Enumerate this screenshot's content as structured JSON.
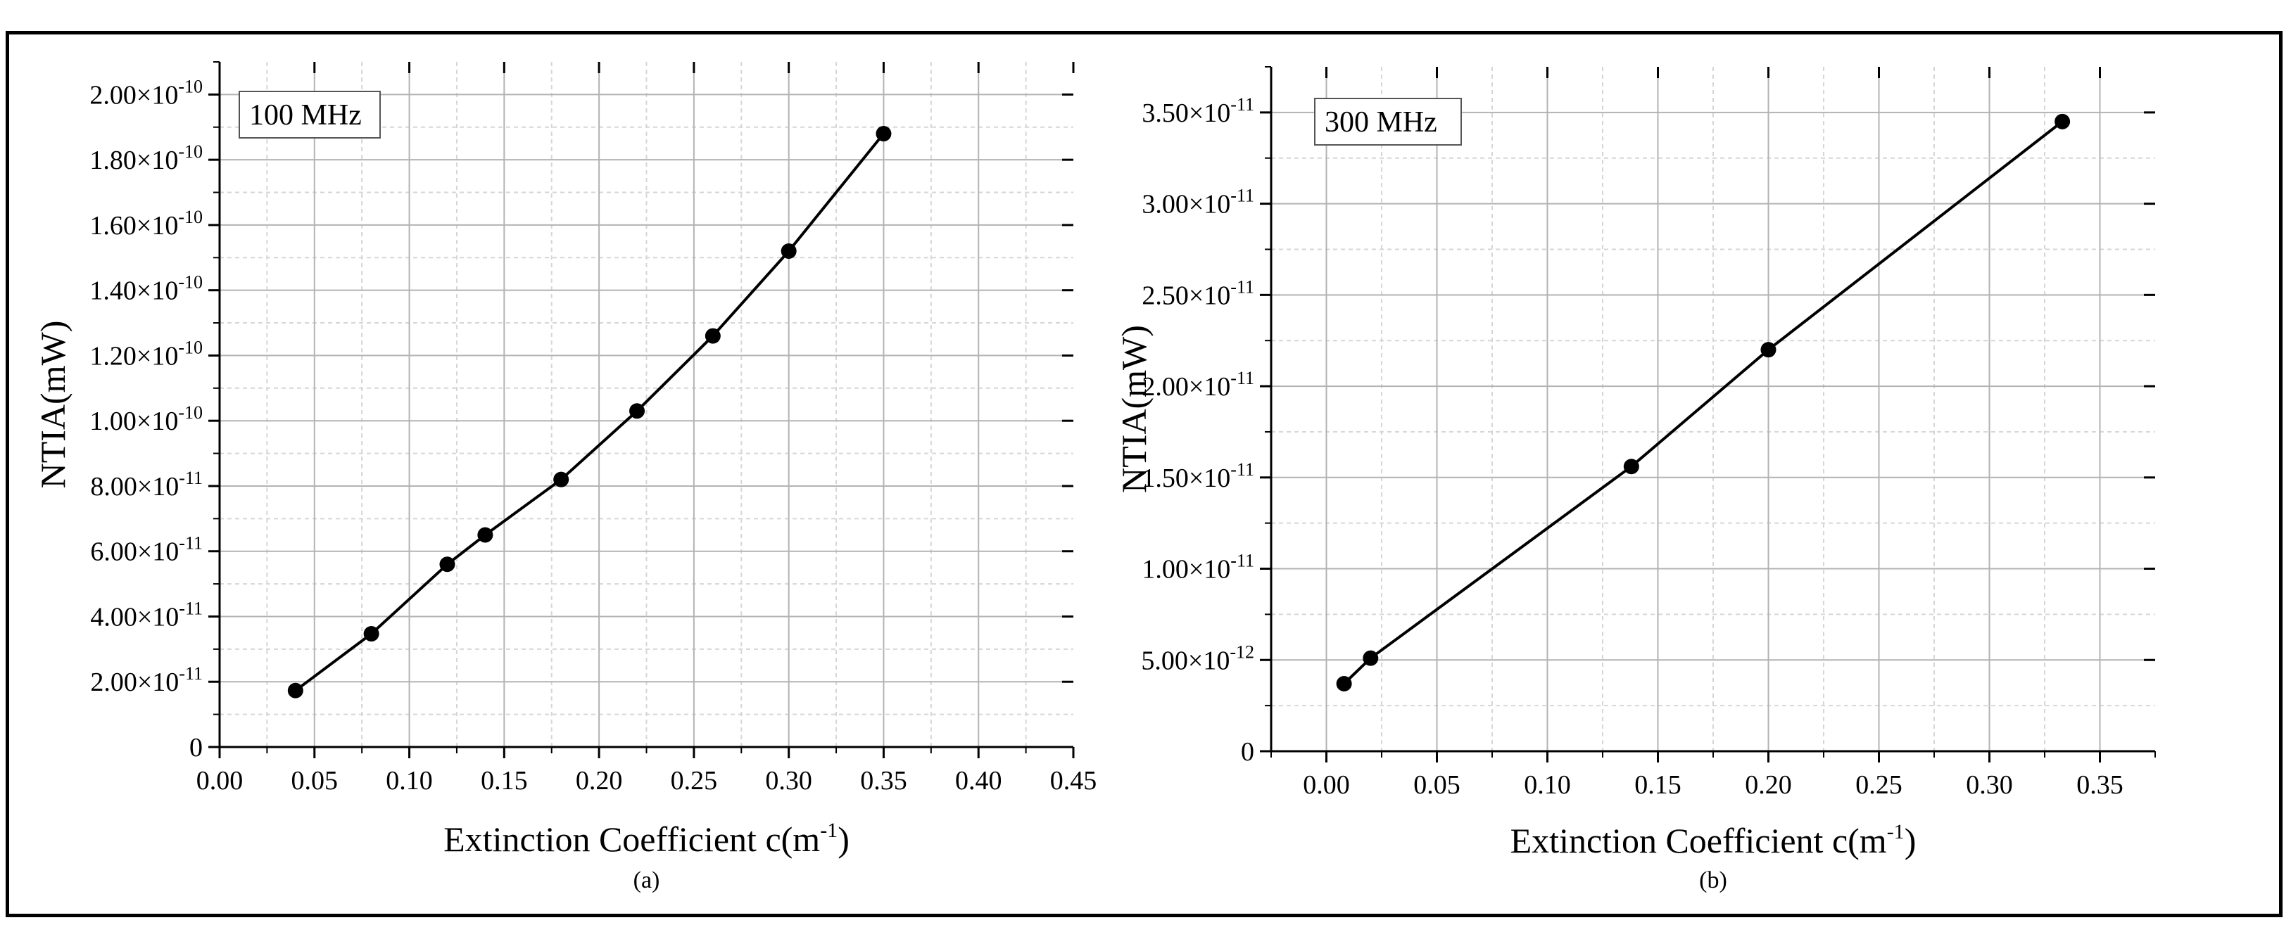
{
  "figure": {
    "panels": [
      {
        "label": "(a)",
        "legend_text": "100 MHz",
        "ylabel": "NTIA(mW)",
        "xlabel_main": "Extinction Coefficient c(m",
        "xlabel_sup": "-1",
        "xlabel_end": ")"
      },
      {
        "label": "(b)",
        "legend_text": "300 MHz",
        "ylabel": "NTIA(mW)",
        "xlabel_main": "Extinction Coefficient c(m",
        "xlabel_sup": "-1",
        "xlabel_end": ")"
      }
    ]
  },
  "chart_data": [
    {
      "type": "line",
      "title": "100 MHz",
      "xlabel": "Extinction Coefficient c(m-1)",
      "ylabel": "NTIA(mW)",
      "xlim": [
        0,
        0.45
      ],
      "ylim": [
        0,
        2.1e-10
      ],
      "x_ticks": [
        0,
        0.05,
        0.1,
        0.15,
        0.2,
        0.25,
        0.3,
        0.35,
        0.4,
        0.45
      ],
      "x_tick_labels": [
        "0.00",
        "0.05",
        "0.10",
        "0.15",
        "0.20",
        "0.25",
        "0.30",
        "0.35",
        "0.40",
        "0.45"
      ],
      "y_ticks": [
        0,
        2e-11,
        4e-11,
        6e-11,
        8e-11,
        1e-10,
        1.2e-10,
        1.4e-10,
        1.6e-10,
        1.8e-10,
        2e-10
      ],
      "y_tick_labels": [
        {
          "m": "0",
          "e": ""
        },
        {
          "m": "2.00×10",
          "e": "-11"
        },
        {
          "m": "4.00×10",
          "e": "-11"
        },
        {
          "m": "6.00×10",
          "e": "-11"
        },
        {
          "m": "8.00×10",
          "e": "-11"
        },
        {
          "m": "1.00×10",
          "e": "-10"
        },
        {
          "m": "1.20×10",
          "e": "-10"
        },
        {
          "m": "1.40×10",
          "e": "-10"
        },
        {
          "m": "1.60×10",
          "e": "-10"
        },
        {
          "m": "1.80×10",
          "e": "-10"
        },
        {
          "m": "2.00×10",
          "e": "-10"
        }
      ],
      "x_minor_step": 0.025,
      "y_minor_step": 1e-11,
      "grid": true,
      "line_color": "#000000",
      "x": [
        0.04,
        0.08,
        0.12,
        0.14,
        0.18,
        0.22,
        0.26,
        0.3,
        0.35
      ],
      "y": [
        1.73e-11,
        3.47e-11,
        5.6e-11,
        6.5e-11,
        8.2e-11,
        1.03e-10,
        1.26e-10,
        1.52e-10,
        1.88e-10
      ]
    },
    {
      "type": "line",
      "title": "300 MHz",
      "xlabel": "Extinction Coefficient c(m-1)",
      "ylabel": "NTIA(mW)",
      "xlim": [
        -0.025,
        0.375
      ],
      "ylim": [
        0,
        3.75e-11
      ],
      "x_ticks": [
        0,
        0.05,
        0.1,
        0.15,
        0.2,
        0.25,
        0.3,
        0.35
      ],
      "x_tick_labels": [
        "0.00",
        "0.05",
        "0.10",
        "0.15",
        "0.20",
        "0.25",
        "0.30",
        "0.35"
      ],
      "y_ticks": [
        0,
        5e-12,
        1e-11,
        1.5e-11,
        2e-11,
        2.5e-11,
        3e-11,
        3.5e-11
      ],
      "y_tick_labels": [
        {
          "m": "0",
          "e": ""
        },
        {
          "m": "5.00×10",
          "e": "-12"
        },
        {
          "m": "1.00×10",
          "e": "-11"
        },
        {
          "m": "1.50×10",
          "e": "-11"
        },
        {
          "m": "2.00×10",
          "e": "-11"
        },
        {
          "m": "2.50×10",
          "e": "-11"
        },
        {
          "m": "3.00×10",
          "e": "-11"
        },
        {
          "m": "3.50×10",
          "e": "-11"
        }
      ],
      "x_minor_step": 0.025,
      "y_minor_step": 2.5e-12,
      "grid": true,
      "line_color": "#000000",
      "x": [
        0.008,
        0.02,
        0.138,
        0.2,
        0.333
      ],
      "y": [
        3.7e-12,
        5.1e-12,
        1.56e-11,
        2.2e-11,
        3.45e-11
      ]
    }
  ]
}
